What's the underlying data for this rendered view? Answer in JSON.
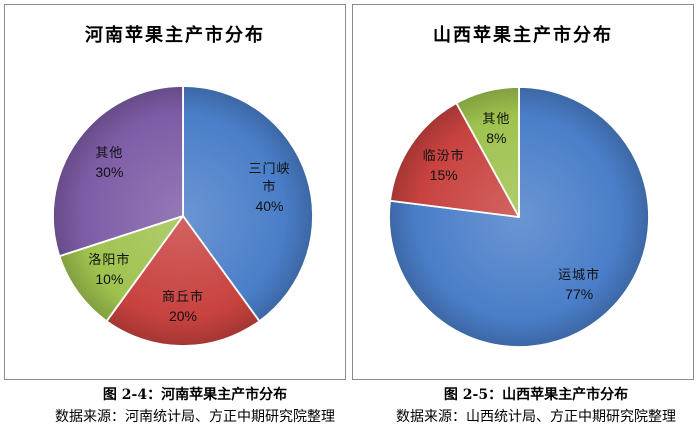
{
  "chart_data": [
    {
      "type": "pie",
      "title": "河南苹果主产市分布",
      "categories": [
        "三门峡市",
        "商丘市",
        "洛阳市",
        "其他"
      ],
      "values": [
        40,
        20,
        10,
        30
      ],
      "data_labels": [
        "40%",
        "20%",
        "10%",
        "30%"
      ],
      "colors": [
        "#4A7EC9",
        "#C8423F",
        "#9FC24E",
        "#7D5CA6"
      ],
      "start_angle_deg": 0,
      "clockwise": true
    },
    {
      "type": "pie",
      "title": "山西苹果主产市分布",
      "categories": [
        "运城市",
        "临汾市",
        "其他"
      ],
      "values": [
        77,
        15,
        8
      ],
      "data_labels": [
        "77%",
        "15%",
        "8%"
      ],
      "colors": [
        "#4A7EC9",
        "#C8423F",
        "#9FC24E"
      ],
      "start_angle_deg": 0,
      "clockwise": true
    }
  ],
  "captions": [
    {
      "figure": "图 2-4：河南苹果主产市分布",
      "source": "数据来源：河南统计局、方正中期研究院整理"
    },
    {
      "figure": "图 2-5：山西苹果主产市分布",
      "source": "数据来源：山西统计局、方正中期研究院整理"
    }
  ]
}
